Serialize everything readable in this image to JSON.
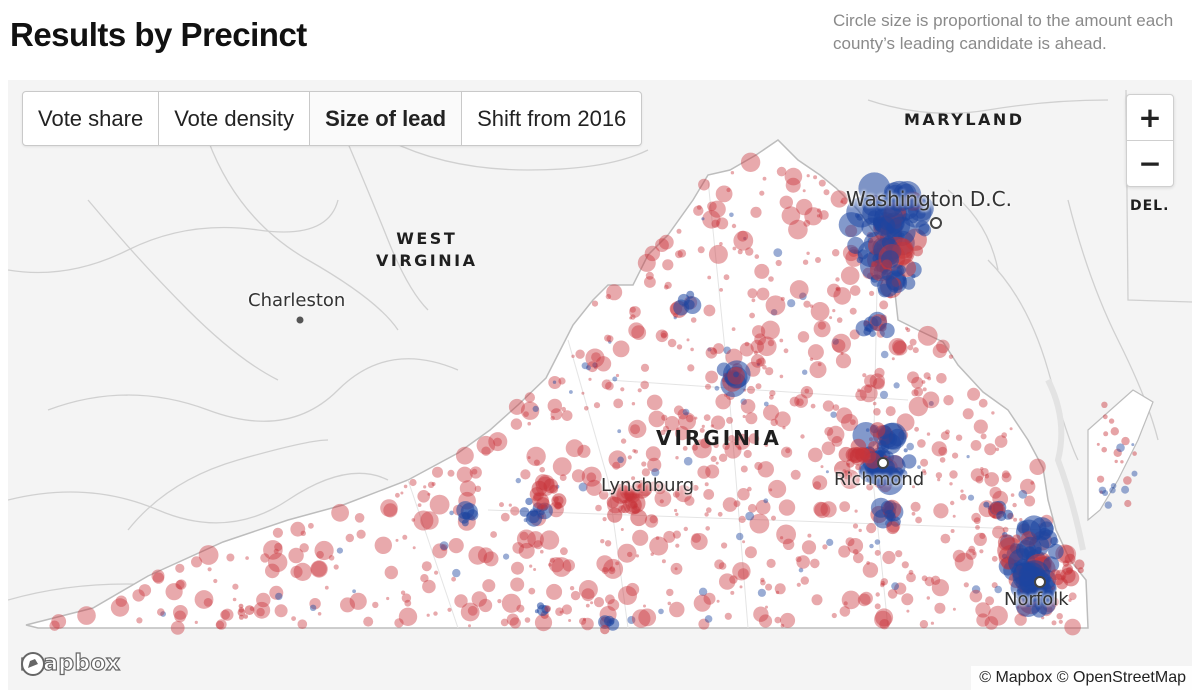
{
  "header": {
    "title": "Results by Precinct",
    "note": "Circle size is proportional to the amount each county’s leading candidate is ahead."
  },
  "tabs": [
    {
      "label": "Vote share",
      "active": false
    },
    {
      "label": "Vote density",
      "active": false
    },
    {
      "label": "Size of lead",
      "active": true
    },
    {
      "label": "Shift from 2016",
      "active": false
    }
  ],
  "zoom": {
    "in": "+",
    "out": "−"
  },
  "labels": {
    "maryland": "MARYLAND",
    "delaware": "DEL.",
    "west_virginia_1": "WEST",
    "west_virginia_2": "VIRGINIA",
    "virginia": "VIRGINIA",
    "washington": "Washington D.C.",
    "charleston": "Charleston",
    "lynchburg": "Lynchburg",
    "richmond": "Richmond",
    "norfolk": "Norfolk"
  },
  "logo_text": "mapbox",
  "attribution": "© Mapbox © OpenStreetMap",
  "colors": {
    "democrat_lead": "#1e46a0",
    "republican_lead": "#c8333a",
    "land": "#ffffff",
    "outside": "#f4f4f4",
    "borders": "#c7c7c7"
  },
  "icons": {
    "logo": "mapbox-logo-icon",
    "city": "city-dot-icon"
  }
}
